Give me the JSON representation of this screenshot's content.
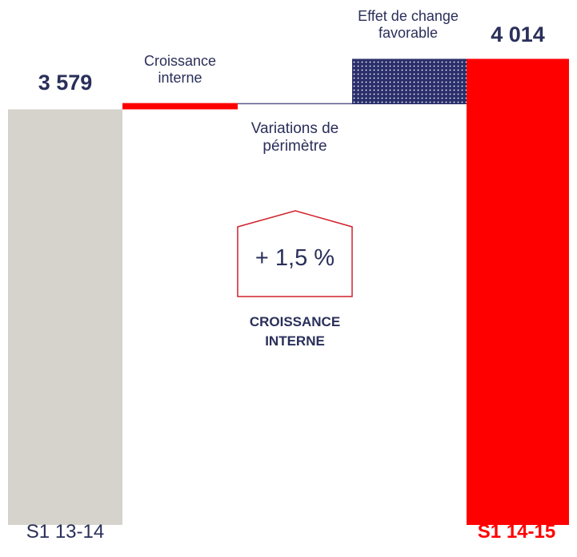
{
  "chart_data": {
    "type": "waterfall",
    "categories": [
      "S1 13-14",
      "Croissance interne",
      "Variations de périmètre",
      "Effet de change favorable",
      "S1 14-15"
    ],
    "values": [
      3579,
      54,
      -10,
      391,
      4014
    ],
    "value_labels": [
      "3 579",
      null,
      null,
      null,
      "4 014"
    ],
    "colors": [
      "#d6d3cc",
      "#ff0000",
      "#5a5a8a",
      "#2a2f6a",
      "#ff0000"
    ],
    "ylim": [
      0,
      4500
    ],
    "annotations": [
      "+ 1,5 %",
      "CROISSANCE INTERNE"
    ]
  }
}
